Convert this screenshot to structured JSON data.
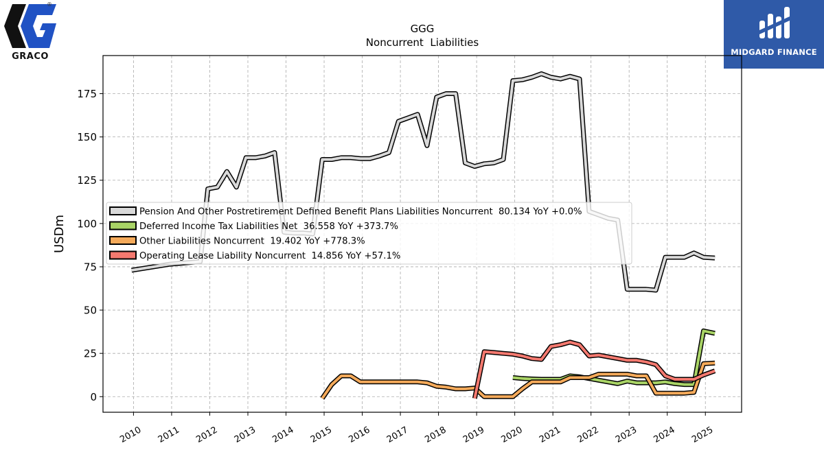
{
  "branding": {
    "left_logo_text": "GRACO",
    "right_logo_text": "MIDGARD FINANCE",
    "registered_mark": "®"
  },
  "chart_data": {
    "type": "line",
    "title": "GGG",
    "subtitle": "Noncurrent  Liabilities",
    "xlabel": "",
    "ylabel": "USDm",
    "xlim": [
      2009.2,
      2025.95
    ],
    "ylim": [
      -9,
      197
    ],
    "yticks": [
      0,
      25,
      50,
      75,
      100,
      125,
      150,
      175
    ],
    "xticks": [
      2010,
      2011,
      2012,
      2013,
      2014,
      2015,
      2016,
      2017,
      2018,
      2019,
      2020,
      2021,
      2022,
      2023,
      2024,
      2025
    ],
    "grid": true,
    "legend_position": "center-left",
    "series": [
      {
        "name": "Pension And Other Postretirement Defined Benefit Plans Liabilities Noncurrent  80.134 YoY +0.0%",
        "color": "#d9d9d9",
        "points": [
          [
            2009.95,
            73
          ],
          [
            2010.95,
            76.5
          ],
          [
            2011.75,
            78
          ],
          [
            2011.95,
            120
          ],
          [
            2012.2,
            121
          ],
          [
            2012.45,
            130
          ],
          [
            2012.7,
            121
          ],
          [
            2012.95,
            138
          ],
          [
            2013.2,
            138
          ],
          [
            2013.45,
            139
          ],
          [
            2013.7,
            141
          ],
          [
            2013.95,
            95
          ],
          [
            2014.2,
            94.5
          ],
          [
            2014.45,
            94.5
          ],
          [
            2014.7,
            94
          ],
          [
            2014.95,
            137
          ],
          [
            2015.2,
            137
          ],
          [
            2015.45,
            138
          ],
          [
            2015.7,
            138
          ],
          [
            2015.95,
            137.5
          ],
          [
            2016.2,
            137.5
          ],
          [
            2016.45,
            139
          ],
          [
            2016.7,
            141
          ],
          [
            2016.95,
            159
          ],
          [
            2017.2,
            161
          ],
          [
            2017.45,
            163
          ],
          [
            2017.7,
            145
          ],
          [
            2017.95,
            173
          ],
          [
            2018.2,
            175
          ],
          [
            2018.45,
            175
          ],
          [
            2018.7,
            135
          ],
          [
            2018.95,
            133
          ],
          [
            2019.2,
            134.5
          ],
          [
            2019.45,
            135
          ],
          [
            2019.7,
            137
          ],
          [
            2019.95,
            182.5
          ],
          [
            2020.2,
            183
          ],
          [
            2020.45,
            184.5
          ],
          [
            2020.7,
            186.5
          ],
          [
            2020.95,
            184.5
          ],
          [
            2021.2,
            183.5
          ],
          [
            2021.45,
            185
          ],
          [
            2021.7,
            183.5
          ],
          [
            2021.95,
            107
          ],
          [
            2022.2,
            105
          ],
          [
            2022.45,
            103
          ],
          [
            2022.7,
            102
          ],
          [
            2022.95,
            62
          ],
          [
            2023.2,
            62
          ],
          [
            2023.45,
            62
          ],
          [
            2023.7,
            61.5
          ],
          [
            2023.95,
            80.5
          ],
          [
            2024.2,
            80.5
          ],
          [
            2024.45,
            80.5
          ],
          [
            2024.7,
            83
          ],
          [
            2024.95,
            80.5
          ],
          [
            2025.25,
            80.1
          ]
        ]
      },
      {
        "name": "Deferred Income Tax Liabilities Net  36.558 YoY +373.7%",
        "color": "#a9d466",
        "points": [
          [
            2019.95,
            11
          ],
          [
            2020.2,
            10.5
          ],
          [
            2020.45,
            10.2
          ],
          [
            2020.7,
            10
          ],
          [
            2020.95,
            10
          ],
          [
            2021.2,
            10
          ],
          [
            2021.45,
            12
          ],
          [
            2021.7,
            11.5
          ],
          [
            2021.95,
            10.5
          ],
          [
            2022.2,
            9.5
          ],
          [
            2022.45,
            8.5
          ],
          [
            2022.7,
            7.5
          ],
          [
            2022.95,
            9
          ],
          [
            2023.2,
            8
          ],
          [
            2023.45,
            8
          ],
          [
            2023.7,
            8
          ],
          [
            2023.95,
            8.5
          ],
          [
            2024.2,
            7.5
          ],
          [
            2024.45,
            7
          ],
          [
            2024.7,
            7
          ],
          [
            2024.95,
            38
          ],
          [
            2025.25,
            36.6
          ]
        ]
      },
      {
        "name": "Other Liabilities Noncurrent  19.402 YoY +778.3%",
        "color": "#f5aa5a",
        "points": [
          [
            2014.95,
            -1
          ],
          [
            2015.2,
            7
          ],
          [
            2015.45,
            12
          ],
          [
            2015.7,
            12
          ],
          [
            2015.95,
            8.5
          ],
          [
            2016.2,
            8.5
          ],
          [
            2016.45,
            8.5
          ],
          [
            2016.7,
            8.5
          ],
          [
            2016.95,
            8.5
          ],
          [
            2017.2,
            8.5
          ],
          [
            2017.45,
            8.5
          ],
          [
            2017.7,
            8
          ],
          [
            2017.95,
            6
          ],
          [
            2018.2,
            5.5
          ],
          [
            2018.45,
            4.5
          ],
          [
            2018.7,
            4.5
          ],
          [
            2018.95,
            5
          ],
          [
            2019.2,
            0
          ],
          [
            2019.45,
            0
          ],
          [
            2019.7,
            0
          ],
          [
            2019.95,
            0
          ],
          [
            2020.2,
            4.5
          ],
          [
            2020.45,
            8.5
          ],
          [
            2020.7,
            8.5
          ],
          [
            2020.95,
            8.5
          ],
          [
            2021.2,
            8.5
          ],
          [
            2021.45,
            11
          ],
          [
            2021.7,
            11
          ],
          [
            2021.95,
            11
          ],
          [
            2022.2,
            13
          ],
          [
            2022.45,
            13
          ],
          [
            2022.7,
            13
          ],
          [
            2022.95,
            13
          ],
          [
            2023.2,
            12
          ],
          [
            2023.45,
            12
          ],
          [
            2023.7,
            2
          ],
          [
            2023.95,
            2
          ],
          [
            2024.2,
            2
          ],
          [
            2024.45,
            2
          ],
          [
            2024.7,
            2.5
          ],
          [
            2024.95,
            19
          ],
          [
            2025.25,
            19.4
          ]
        ]
      },
      {
        "name": "Operating Lease Liability Noncurrent  14.856 YoY +57.1%",
        "color": "#f4796f",
        "points": [
          [
            2018.95,
            -1
          ],
          [
            2019.2,
            26
          ],
          [
            2019.45,
            25.5
          ],
          [
            2019.7,
            25
          ],
          [
            2019.95,
            24.5
          ],
          [
            2020.2,
            23.5
          ],
          [
            2020.45,
            22
          ],
          [
            2020.7,
            21.5
          ],
          [
            2020.95,
            29
          ],
          [
            2021.2,
            30
          ],
          [
            2021.45,
            31.5
          ],
          [
            2021.7,
            30
          ],
          [
            2021.95,
            23.5
          ],
          [
            2022.2,
            24
          ],
          [
            2022.45,
            23
          ],
          [
            2022.7,
            22
          ],
          [
            2022.95,
            21
          ],
          [
            2023.2,
            21
          ],
          [
            2023.45,
            20
          ],
          [
            2023.7,
            18.5
          ],
          [
            2023.95,
            12
          ],
          [
            2024.2,
            10
          ],
          [
            2024.45,
            10
          ],
          [
            2024.7,
            10
          ],
          [
            2024.95,
            12.5
          ],
          [
            2025.25,
            14.9
          ]
        ]
      }
    ]
  }
}
